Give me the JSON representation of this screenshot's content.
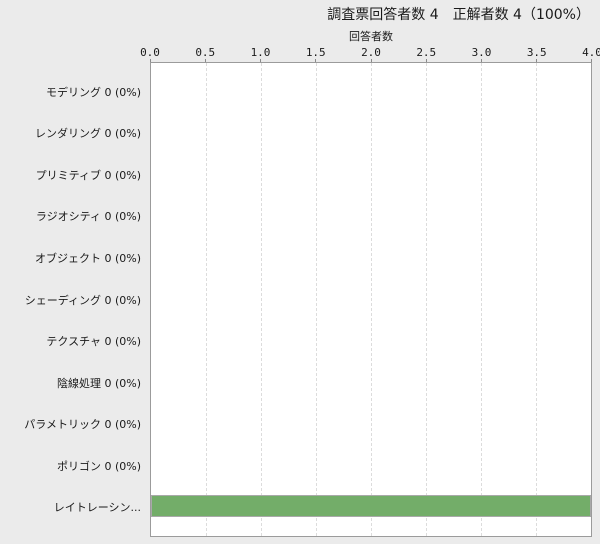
{
  "colors": {
    "page_background": "#ebebeb",
    "plot_background": "#ffffff",
    "plot_border": "#9b9b9b",
    "gridline": "#dcdcdc",
    "bar_fill": "#73ad69",
    "bar_border": "#a9a9a9",
    "text": "#1a1a1a"
  },
  "chart_data": {
    "type": "bar",
    "orientation": "horizontal",
    "title": "調査票回答者数 4　正解者数 4（100%）",
    "xlabel": "回答者数",
    "xlim": [
      0,
      4
    ],
    "xticks": [
      "0.0",
      "0.5",
      "1.0",
      "1.5",
      "2.0",
      "2.5",
      "3.0",
      "3.5",
      "4.0"
    ],
    "grid": "vertical-dashed",
    "legend": "none",
    "categories": [
      "モデリング 0 (0%)",
      "レンダリング 0 (0%)",
      "プリミティブ 0 (0%)",
      "ラジオシティ 0 (0%)",
      "オブジェクト 0 (0%)",
      "シェーディング 0 (0%)",
      "テクスチャ 0 (0%)",
      "陰線処理 0 (0%)",
      "パラメトリック 0 (0%)",
      "ポリゴン 0 (0%)",
      "レイトレーシン..."
    ],
    "values": [
      0,
      0,
      0,
      0,
      0,
      0,
      0,
      0,
      0,
      0,
      4
    ]
  }
}
